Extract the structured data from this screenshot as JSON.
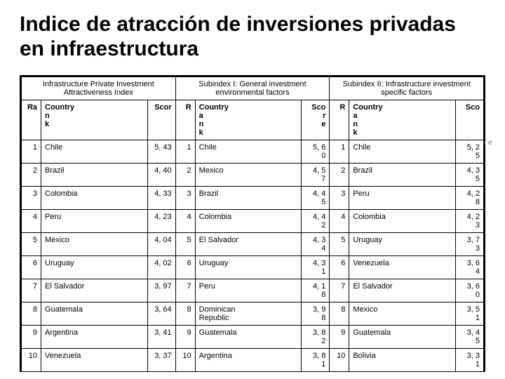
{
  "title": "Indice de atracción de inversiones privadas en infraestructura",
  "groups": [
    {
      "label": "Infrastructure Private Investment Attractiveness Index"
    },
    {
      "label": "Subindex I: General investment environmental factors"
    },
    {
      "label": "Subindex II: Infrastructure investment specific factors"
    }
  ],
  "col_hdr": {
    "rank": "Ra",
    "country": "Country\nn\nk",
    "score": "Scor",
    "rank2": "R",
    "country2": "Country\na\nn\nk",
    "score2": "Sco\nr\ne",
    "rank3": "R",
    "country3": "Country\na\nn\nk",
    "score3": "Sco"
  },
  "rows": [
    {
      "r1": "1",
      "c1": "Chile",
      "s1": "5, 43",
      "r2": "1",
      "c2": "Chile",
      "s2": "5, 6\n0",
      "r3": "1",
      "c3": "Chile",
      "s3": "5, 2\n5"
    },
    {
      "r1": "2",
      "c1": "Brazil",
      "s1": "4, 40",
      "r2": "2",
      "c2": "Mexico",
      "s2": "4, 5\n7",
      "r3": "2",
      "c3": "Brazil",
      "s3": "4, 3\n5"
    },
    {
      "r1": "3",
      "c1": "Colombia",
      "s1": "4, 33",
      "r2": "3",
      "c2": "Brazil",
      "s2": "4, 4\n5",
      "r3": "3",
      "c3": "Peru",
      "s3": "4, 2\n8"
    },
    {
      "r1": "4",
      "c1": "Peru",
      "s1": "4, 23",
      "r2": "4",
      "c2": "Colombia",
      "s2": "4, 4\n2",
      "r3": "4",
      "c3": "Colombia",
      "s3": "4, 2\n3"
    },
    {
      "r1": "5",
      "c1": "Mexico",
      "s1": "4, 04",
      "r2": "5",
      "c2": "El Salvador",
      "s2": "4, 3\n4",
      "r3": "5",
      "c3": "Uruguay",
      "s3": "3, 7\n3"
    },
    {
      "r1": "6",
      "c1": "Uruguay",
      "s1": "4, 02",
      "r2": "6",
      "c2": "Uruguay",
      "s2": "4, 3\n1",
      "r3": "6",
      "c3": "Venezuela",
      "s3": "3, 6\n4"
    },
    {
      "r1": "7",
      "c1": "El Salvador",
      "s1": "3, 97",
      "r2": "7",
      "c2": "Peru",
      "s2": "4, 1\n8",
      "r3": "7",
      "c3": "El Salvador",
      "s3": "3, 6\n0"
    },
    {
      "r1": "8",
      "c1": "Guatemala",
      "s1": "3, 64",
      "r2": "8",
      "c2": "Dominican\nRepublic",
      "s2": "3, 9\n8",
      "r3": "8",
      "c3": "Mexico",
      "s3": "3, 5\n1"
    },
    {
      "r1": "9",
      "c1": "Argentina",
      "s1": "3, 41",
      "r2": "9",
      "c2": "Guatemala",
      "s2": "3, 8\n2",
      "r3": "9",
      "c3": "Guatemala",
      "s3": "3, 4\n5"
    },
    {
      "r1": "10",
      "c1": "Venezuela",
      "s1": "3, 37",
      "r2": "10",
      "c2": "Argentina",
      "s2": "3, 8\n1",
      "r3": "10",
      "c3": "Bolivia",
      "s3": "3, 3\n1"
    }
  ],
  "side_text": "r\ne"
}
